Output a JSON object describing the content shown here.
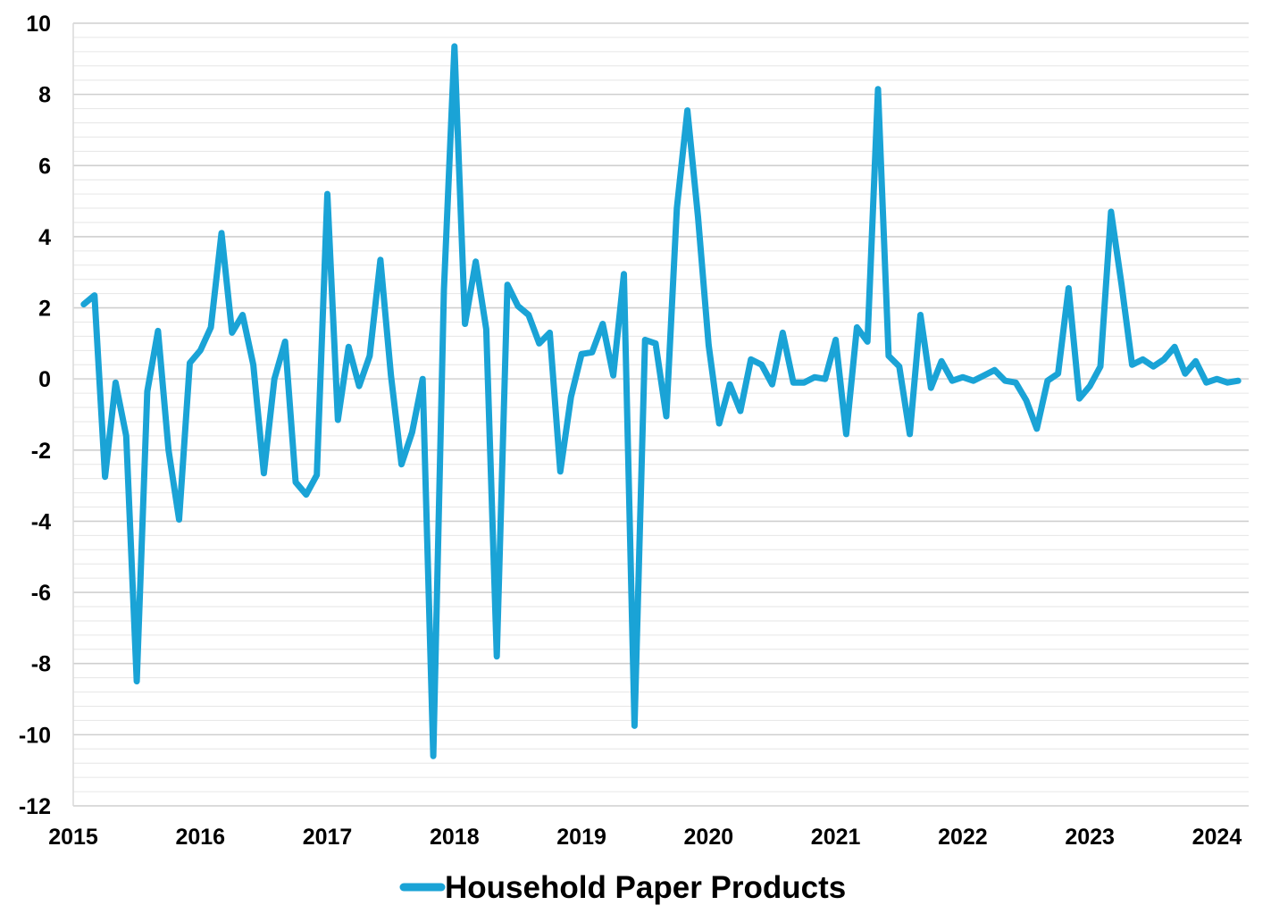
{
  "chart_data": {
    "type": "line",
    "title": "",
    "xlabel": "",
    "ylabel": "",
    "ylim": [
      -12,
      10
    ],
    "y_major_step": 2,
    "y_minor_step": 0.4,
    "grid": true,
    "legend_position": "bottom-center",
    "colors": {
      "series": "#1aa3d6",
      "major_grid": "#cfcfcf",
      "minor_grid": "#e6e6e6"
    },
    "x_tick_labels": [
      "2015",
      "2016",
      "2017",
      "2018",
      "2019",
      "2020",
      "2021",
      "2022",
      "2023",
      "2024"
    ],
    "x_tick_values": [
      2015,
      2016,
      2017,
      2018,
      2019,
      2020,
      2021,
      2022,
      2023,
      2024
    ],
    "xlim": [
      2015,
      2024.25
    ],
    "y_tick_labels": [
      "10",
      "8",
      "6",
      "4",
      "2",
      "0",
      "-2",
      "-4",
      "-6",
      "-8",
      "-10",
      "-12"
    ],
    "y_tick_values": [
      10,
      8,
      6,
      4,
      2,
      0,
      -2,
      -4,
      -6,
      -8,
      -10,
      -12
    ],
    "series": [
      {
        "name": "Household Paper Products",
        "x": [
          2015.083,
          2015.167,
          2015.25,
          2015.333,
          2015.417,
          2015.5,
          2015.583,
          2015.667,
          2015.75,
          2015.833,
          2015.917,
          2016.0,
          2016.083,
          2016.167,
          2016.25,
          2016.333,
          2016.417,
          2016.5,
          2016.583,
          2016.667,
          2016.75,
          2016.833,
          2016.917,
          2017.0,
          2017.083,
          2017.167,
          2017.25,
          2017.333,
          2017.417,
          2017.5,
          2017.583,
          2017.667,
          2017.75,
          2017.833,
          2017.917,
          2018.0,
          2018.083,
          2018.167,
          2018.25,
          2018.333,
          2018.417,
          2018.5,
          2018.583,
          2018.667,
          2018.75,
          2018.833,
          2018.917,
          2019.0,
          2019.083,
          2019.167,
          2019.25,
          2019.333,
          2019.417,
          2019.5,
          2019.583,
          2019.667,
          2019.75,
          2019.833,
          2019.917,
          2020.0,
          2020.083,
          2020.167,
          2020.25,
          2020.333,
          2020.417,
          2020.5,
          2020.583,
          2020.667,
          2020.75,
          2020.833,
          2020.917,
          2021.0,
          2021.083,
          2021.167,
          2021.25,
          2021.333,
          2021.417,
          2021.5,
          2021.583,
          2021.667,
          2021.75,
          2021.833,
          2021.917,
          2022.0,
          2022.083,
          2022.167,
          2022.25,
          2022.333,
          2022.417,
          2022.5,
          2022.583,
          2022.667,
          2022.75,
          2022.833,
          2022.917,
          2023.0,
          2023.083,
          2023.167,
          2023.25,
          2023.333,
          2023.417,
          2023.5,
          2023.583,
          2023.667,
          2023.75,
          2023.833,
          2023.917,
          2024.0,
          2024.083,
          2024.167
        ],
        "values": [
          2.1,
          2.35,
          -2.75,
          -0.1,
          -1.6,
          -8.5,
          -0.35,
          1.35,
          -2.0,
          -3.95,
          0.45,
          0.8,
          1.45,
          4.1,
          1.3,
          1.8,
          0.4,
          -2.65,
          0.0,
          1.05,
          -2.9,
          -3.25,
          -2.7,
          5.2,
          -1.15,
          0.9,
          -0.2,
          0.65,
          3.35,
          0.1,
          -2.4,
          -1.5,
          0.0,
          -10.6,
          2.5,
          9.35,
          1.55,
          3.3,
          1.4,
          -7.8,
          2.65,
          2.05,
          1.8,
          1.0,
          1.3,
          -2.6,
          -0.5,
          0.7,
          0.75,
          1.55,
          0.1,
          2.95,
          -9.75,
          1.1,
          1.0,
          -1.05,
          4.8,
          7.55,
          4.55,
          0.95,
          -1.25,
          -0.15,
          -0.9,
          0.55,
          0.4,
          -0.15,
          1.3,
          -0.1,
          -0.1,
          0.05,
          0.0,
          1.1,
          -1.55,
          1.45,
          1.05,
          8.15,
          0.65,
          0.35,
          -1.55,
          1.8,
          -0.25,
          0.5,
          -0.05,
          0.05,
          -0.05,
          0.1,
          0.25,
          -0.05,
          -0.1,
          -0.6,
          -1.4,
          -0.05,
          0.15,
          2.55,
          -0.55,
          -0.2,
          0.35,
          4.7,
          2.65,
          0.4,
          0.55,
          0.35,
          0.55,
          0.9,
          0.15,
          0.5,
          -0.1,
          0.0,
          -0.1,
          -0.05
        ]
      }
    ]
  },
  "legend": {
    "label": "Household Paper Products"
  }
}
